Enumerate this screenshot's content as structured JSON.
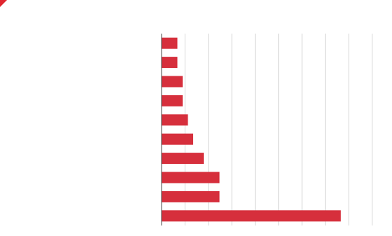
{
  "chart_data": {
    "type": "bar",
    "orientation": "horizontal",
    "title": "",
    "categories": [
      "",
      "",
      "",
      "",
      "",
      "",
      "",
      "",
      "",
      ""
    ],
    "values": [
      3,
      3,
      4,
      4,
      5,
      6,
      8,
      11,
      11,
      34
    ],
    "xticks": [
      "",
      "",
      "",
      "",
      "",
      "",
      "",
      "",
      "",
      ""
    ],
    "xlim": [
      0,
      40
    ],
    "grid": "vertical",
    "legend": "none",
    "bar_color": "#d62f3c",
    "grid_color": "#dddddd",
    "axis_color": "#444444"
  },
  "accent_color": "#e0262f"
}
